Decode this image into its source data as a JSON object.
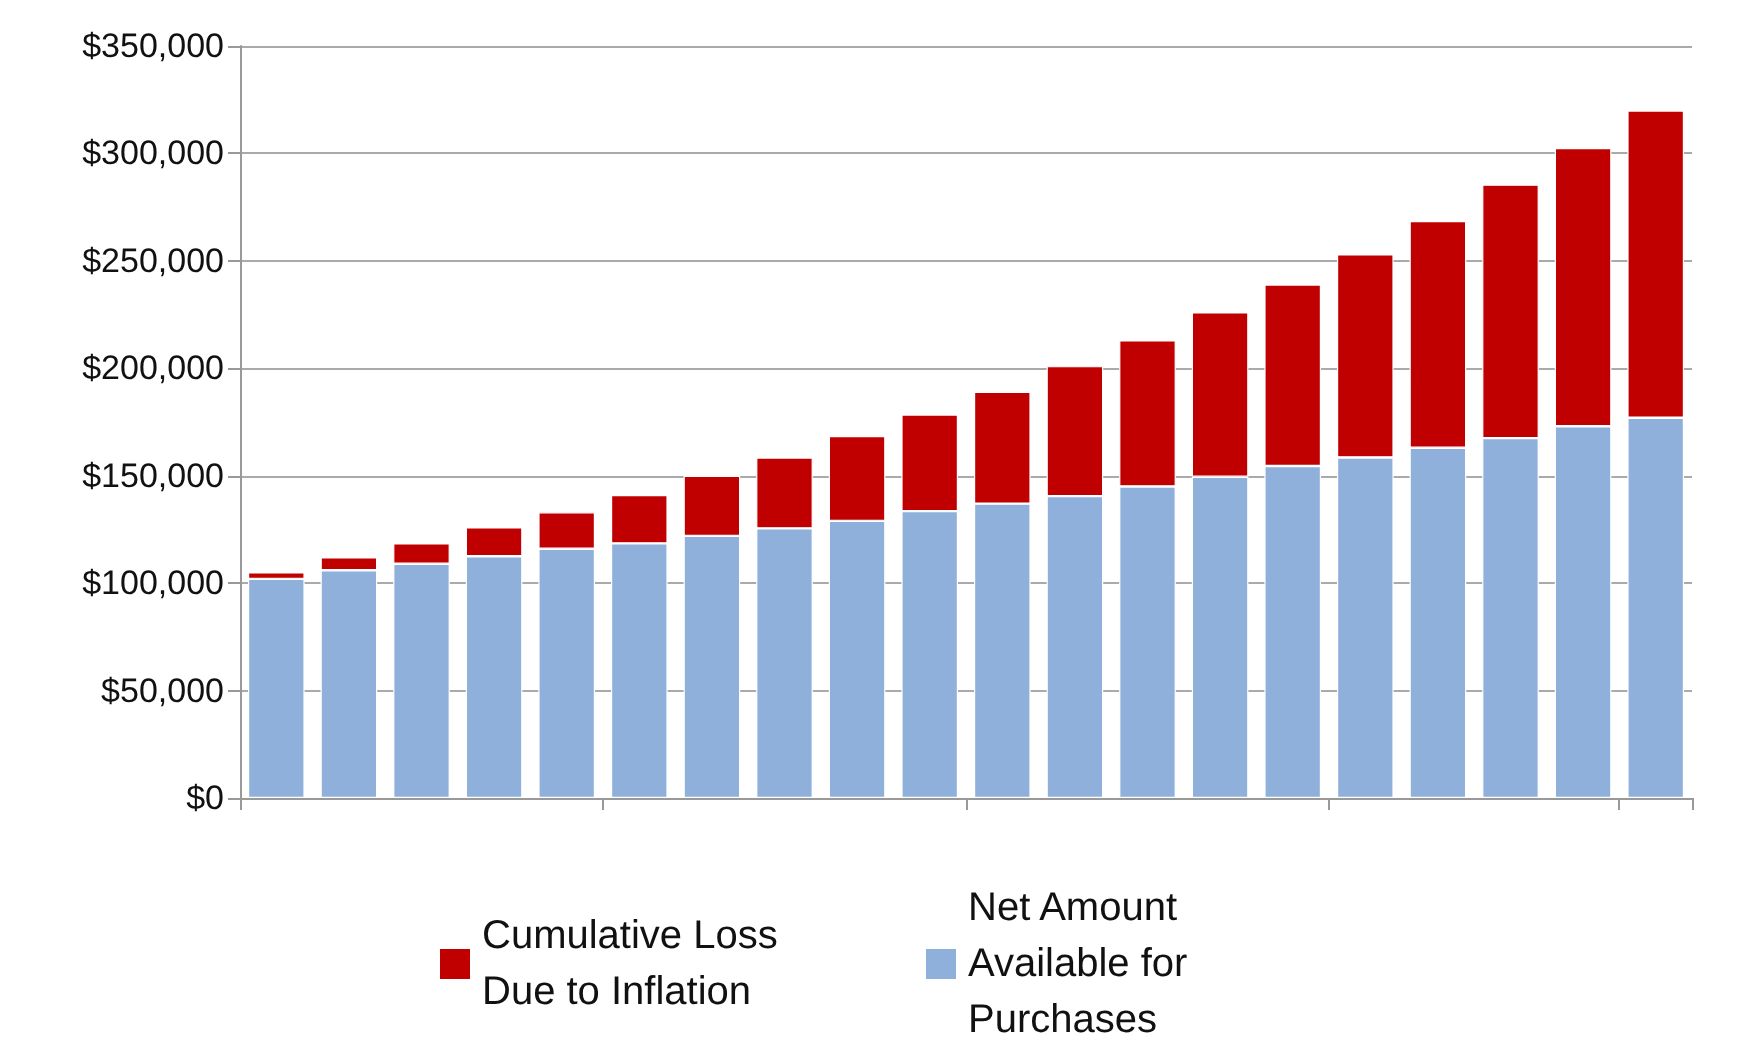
{
  "chart_data": {
    "type": "bar",
    "stacked": true,
    "categories": [
      null,
      null,
      null,
      null,
      null,
      null,
      null,
      null,
      null,
      null,
      null,
      null,
      null,
      null,
      null,
      null,
      null,
      null,
      null,
      null
    ],
    "series": [
      {
        "name": "Net Amount Available for Purchases",
        "color": "#8eb0db",
        "values": [
          102000,
          106000,
          109000,
          112500,
          116000,
          118500,
          122000,
          125500,
          129000,
          133500,
          137000,
          140500,
          145000,
          149500,
          154500,
          158500,
          163000,
          167500,
          173000,
          177000
        ]
      },
      {
        "name": "Cumulative Loss Due to Inflation",
        "color": "#c00000",
        "values": [
          3000,
          6000,
          9500,
          13500,
          17000,
          22500,
          28000,
          33000,
          39500,
          45000,
          52000,
          60500,
          68000,
          76500,
          84500,
          94500,
          105500,
          118000,
          129500,
          143000
        ]
      }
    ],
    "ylim": [
      0,
      350000
    ],
    "yticks": [
      {
        "value": 0,
        "label": "$0"
      },
      {
        "value": 50000,
        "label": "$50,000"
      },
      {
        "value": 100000,
        "label": "$100,000"
      },
      {
        "value": 150000,
        "label": "$150,000"
      },
      {
        "value": 200000,
        "label": "$200,000"
      },
      {
        "value": 250000,
        "label": "$250,000"
      },
      {
        "value": 300000,
        "label": "$300,000"
      },
      {
        "value": 350000,
        "label": "$350,000"
      }
    ],
    "grid": "y",
    "legend": "bottom"
  }
}
